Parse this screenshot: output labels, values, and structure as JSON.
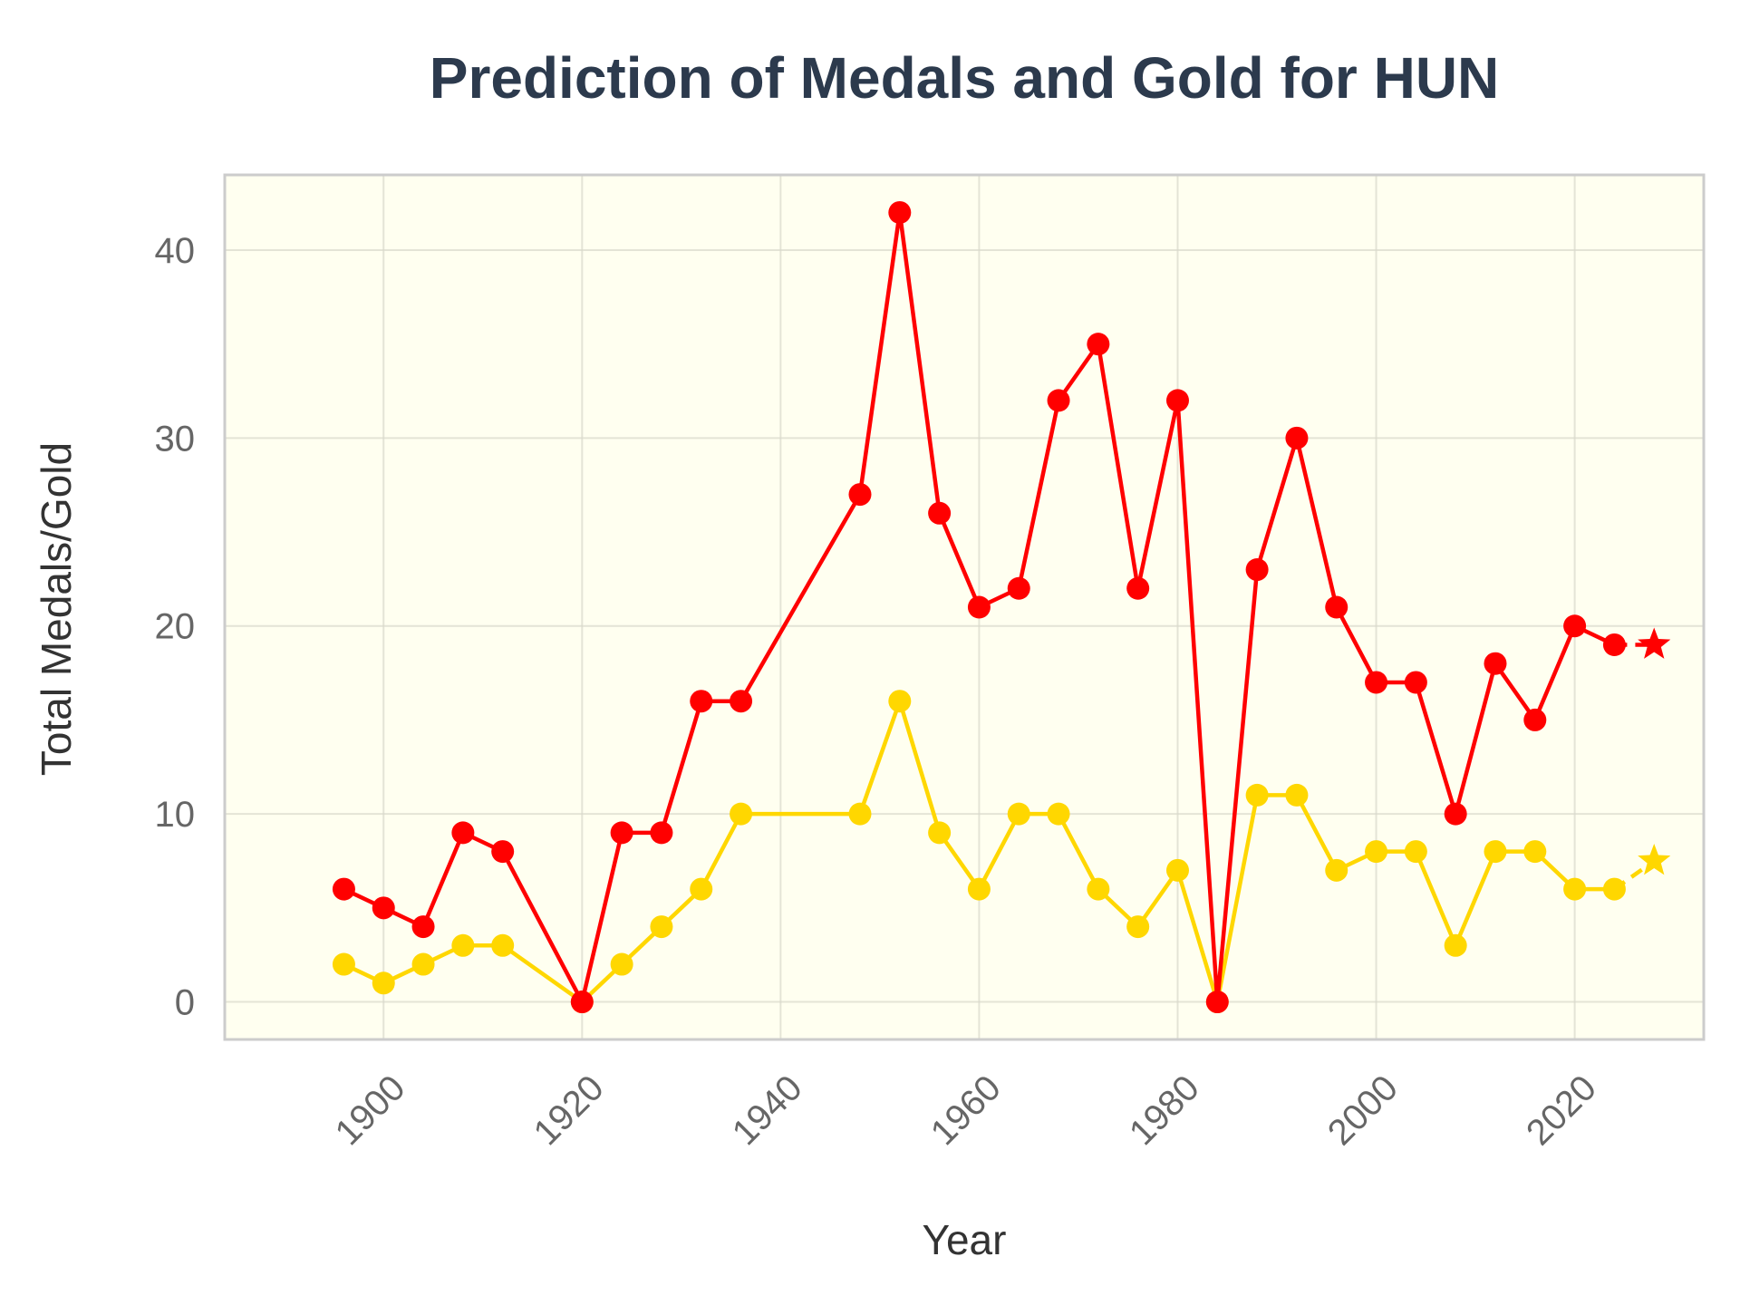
{
  "colors": {
    "total_medals": "#ff0000",
    "gold": "#ffd700",
    "plot_background": "#fffff0",
    "frame": "#cccccc",
    "title": "#2c3a4d"
  },
  "chart_data": {
    "type": "line",
    "title": "Prediction of Medals and Gold for HUN",
    "xlabel": "Year",
    "ylabel": "Total Medals/Gold",
    "xlim": [
      1884,
      2033
    ],
    "ylim": [
      -2,
      44
    ],
    "x_ticks": [
      "1900",
      "1920",
      "1940",
      "1960",
      "1980",
      "2000",
      "2020"
    ],
    "y_ticks": [
      "0",
      "10",
      "20",
      "30",
      "40"
    ],
    "grid": true,
    "legend": false,
    "series": [
      {
        "key": "total_medals",
        "marker": "circle",
        "x": [
          1896,
          1900,
          1904,
          1908,
          1912,
          1920,
          1924,
          1928,
          1932,
          1936,
          1948,
          1952,
          1956,
          1960,
          1964,
          1968,
          1972,
          1976,
          1980,
          1984,
          1988,
          1992,
          1996,
          2000,
          2004,
          2008,
          2012,
          2016,
          2020,
          2024
        ],
        "values": [
          6,
          5,
          4,
          9,
          8,
          0,
          9,
          9,
          16,
          16,
          27,
          42,
          26,
          21,
          22,
          32,
          35,
          22,
          32,
          0,
          23,
          30,
          21,
          17,
          17,
          10,
          18,
          15,
          20,
          19
        ],
        "prediction": {
          "x": 2028,
          "value": 19
        }
      },
      {
        "key": "gold",
        "marker": "circle",
        "x": [
          1896,
          1900,
          1904,
          1908,
          1912,
          1920,
          1924,
          1928,
          1932,
          1936,
          1948,
          1952,
          1956,
          1960,
          1964,
          1968,
          1972,
          1976,
          1980,
          1984,
          1988,
          1992,
          1996,
          2000,
          2004,
          2008,
          2012,
          2016,
          2020,
          2024
        ],
        "values": [
          2,
          1,
          2,
          3,
          3,
          0,
          2,
          4,
          6,
          10,
          10,
          16,
          9,
          6,
          10,
          10,
          6,
          4,
          7,
          0,
          11,
          11,
          7,
          8,
          8,
          3,
          8,
          8,
          6,
          6
        ],
        "prediction": {
          "x": 2028,
          "value": 7.5
        }
      }
    ]
  }
}
